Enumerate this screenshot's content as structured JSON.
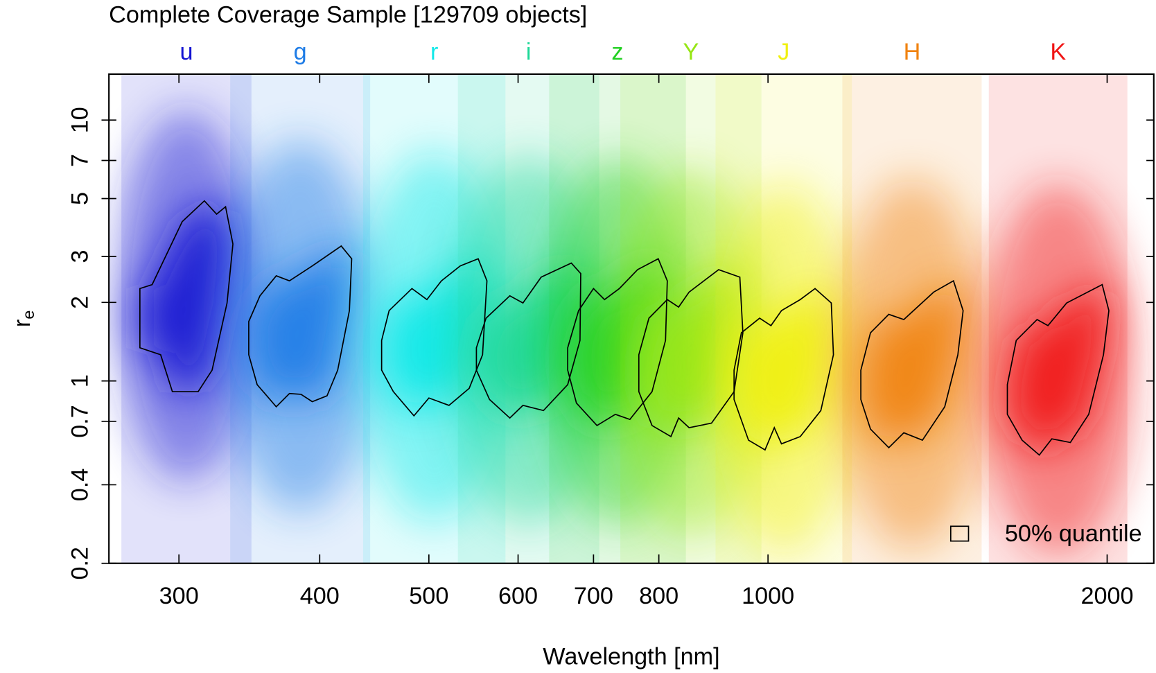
{
  "chart_data": {
    "type": "contour",
    "title": "Complete Coverage Sample [129709 objects]",
    "x_label": "Wavelength [nm]",
    "y_label": {
      "text": "r",
      "subscript": "e"
    },
    "xscale": "log",
    "yscale": "log",
    "xlim": [
      260,
      2200
    ],
    "ylim": [
      0.2,
      15
    ],
    "xticks": [
      300,
      400,
      500,
      600,
      700,
      800,
      1000,
      2000
    ],
    "yticks": [
      0.2,
      0.4,
      0.7,
      1,
      2,
      3,
      5,
      7,
      10
    ],
    "legend_label": "50% quantile",
    "legend_position": "bottom-right",
    "series": [
      {
        "name": "u",
        "color": "#1414d2",
        "x": [
          277,
          284,
          302,
          316,
          324,
          330,
          335,
          331,
          321,
          312,
          296,
          289,
          277
        ],
        "y": [
          2.26,
          2.34,
          4.08,
          4.9,
          4.36,
          4.65,
          3.35,
          1.99,
          1.1,
          0.91,
          0.91,
          1.26,
          1.34
        ]
      },
      {
        "name": "g",
        "color": "#1e7ce6",
        "x": [
          346,
          354,
          366,
          376,
          394,
          418,
          427,
          425,
          415,
          406,
          394,
          385,
          376,
          366,
          352,
          346
        ],
        "y": [
          1.69,
          2.12,
          2.53,
          2.42,
          2.76,
          3.29,
          2.94,
          1.86,
          1.1,
          0.877,
          0.833,
          0.889,
          0.895,
          0.796,
          0.968,
          1.26
        ]
      },
      {
        "name": "r",
        "color": "#10e8e8",
        "x": [
          454,
          461,
          483,
          498,
          513,
          533,
          553,
          563,
          558,
          543,
          521,
          500,
          485,
          465,
          454
        ],
        "y": [
          1.43,
          1.86,
          2.26,
          2.05,
          2.42,
          2.76,
          2.94,
          2.42,
          1.26,
          0.937,
          0.806,
          0.86,
          0.735,
          0.91,
          1.1
        ]
      },
      {
        "name": "i",
        "color": "#1ed898",
        "x": [
          551,
          562,
          590,
          606,
          629,
          669,
          682,
          681,
          664,
          632,
          606,
          590,
          566,
          551
        ],
        "y": [
          1.34,
          1.74,
          2.12,
          1.99,
          2.5,
          2.83,
          2.58,
          1.43,
          0.968,
          0.77,
          0.806,
          0.721,
          0.849,
          1.1
        ]
      },
      {
        "name": "z",
        "color": "#22d022",
        "x": [
          664,
          679,
          700,
          716,
          738,
          766,
          799,
          814,
          811,
          789,
          754,
          732,
          705,
          676,
          664
        ],
        "y": [
          1.34,
          1.86,
          2.26,
          2.05,
          2.26,
          2.67,
          2.94,
          2.42,
          1.43,
          0.91,
          0.712,
          0.745,
          0.675,
          0.822,
          1.1
        ]
      },
      {
        "name": "Y",
        "color": "#96e614",
        "x": [
          768,
          784,
          814,
          833,
          851,
          904,
          944,
          950,
          933,
          891,
          851,
          833,
          820,
          789,
          768
        ],
        "y": [
          1.26,
          1.74,
          2.05,
          1.92,
          2.19,
          2.67,
          2.5,
          1.53,
          0.91,
          0.689,
          0.662,
          0.721,
          0.612,
          0.675,
          0.91
        ]
      },
      {
        "name": "J",
        "color": "#f0f010",
        "x": [
          933,
          947,
          983,
          1006,
          1028,
          1068,
          1101,
          1138,
          1143,
          1114,
          1068,
          1028,
          1013,
          994,
          961,
          933
        ],
        "y": [
          1.1,
          1.53,
          1.74,
          1.63,
          1.86,
          2.05,
          2.26,
          1.99,
          1.26,
          0.77,
          0.612,
          0.574,
          0.662,
          0.544,
          0.593,
          0.849
        ]
      },
      {
        "name": "H",
        "color": "#f0820f",
        "x": [
          1209,
          1233,
          1280,
          1320,
          1403,
          1461,
          1490,
          1474,
          1435,
          1371,
          1320,
          1280,
          1233,
          1209
        ],
        "y": [
          1.1,
          1.53,
          1.8,
          1.72,
          2.19,
          2.42,
          1.86,
          1.26,
          0.796,
          0.593,
          0.633,
          0.555,
          0.654,
          0.849
        ]
      },
      {
        "name": "K",
        "color": "#f01414",
        "x": [
          1631,
          1661,
          1733,
          1772,
          1841,
          1980,
          2007,
          1985,
          1926,
          1855,
          1786,
          1741,
          1681,
          1631
        ],
        "y": [
          0.968,
          1.43,
          1.72,
          1.63,
          1.99,
          2.34,
          1.86,
          1.26,
          0.745,
          0.581,
          0.6,
          0.52,
          0.593,
          0.745
        ]
      }
    ]
  }
}
